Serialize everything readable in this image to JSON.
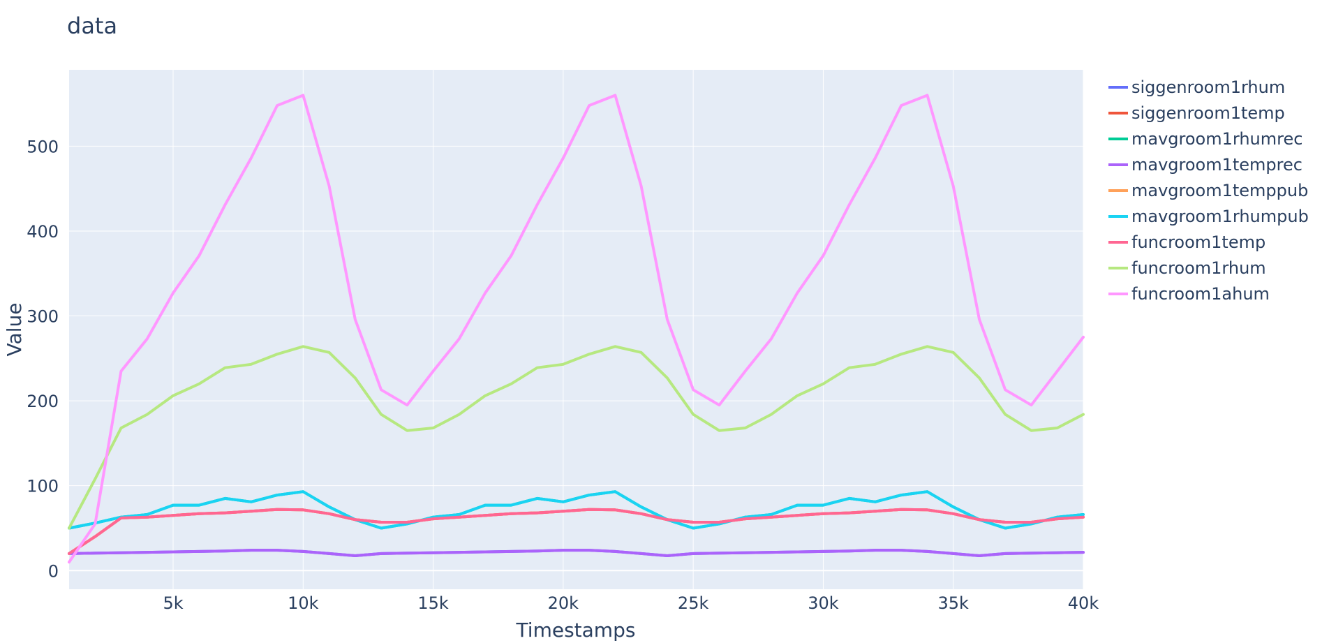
{
  "chart_data": {
    "type": "line",
    "title": "data",
    "xlabel": "Timestamps",
    "ylabel": "Value",
    "xlim": [
      1000,
      40000
    ],
    "ylim": [
      -22,
      590
    ],
    "x_ticks": [
      5000,
      10000,
      15000,
      20000,
      25000,
      30000,
      35000,
      40000
    ],
    "x_tick_labels": [
      "5k",
      "10k",
      "15k",
      "20k",
      "25k",
      "30k",
      "35k",
      "40k"
    ],
    "y_ticks": [
      0,
      100,
      200,
      300,
      400,
      500
    ],
    "y_tick_labels": [
      "0",
      "100",
      "200",
      "300",
      "400",
      "500"
    ],
    "grid": true,
    "legend_position": "right",
    "background_color": "#e5ecf6",
    "x": [
      1000,
      2000,
      3000,
      4000,
      5000,
      6000,
      7000,
      8000,
      9000,
      10000,
      11000,
      12000,
      13000,
      14000,
      15000,
      16000,
      17000,
      18000,
      19000,
      20000,
      21000,
      22000,
      23000,
      24000,
      25000,
      26000,
      27000,
      28000,
      29000,
      30000,
      31000,
      32000,
      33000,
      34000,
      35000,
      36000,
      37000,
      38000,
      39000,
      40000
    ],
    "series": [
      {
        "name": "siggenroom1rhum",
        "color": "#636efa",
        "values": [
          20,
          20.5,
          21,
          21.5,
          22,
          22.5,
          23,
          24,
          24,
          22.5,
          20,
          17.5,
          20,
          20.5,
          21,
          21.5,
          22,
          22.5,
          23,
          24,
          24,
          22.5,
          20,
          17.5,
          20,
          20.5,
          21,
          21.5,
          22,
          22.5,
          23,
          24,
          24,
          22.5,
          20,
          17.5,
          20,
          20.5,
          21,
          21.5
        ]
      },
      {
        "name": "siggenroom1temp",
        "color": "#ef553b",
        "values": [
          20,
          40,
          62,
          63,
          65,
          67,
          68,
          70,
          72,
          71.5,
          67,
          60,
          57,
          57,
          61,
          63,
          65,
          67,
          68,
          70,
          72,
          71.5,
          67,
          60,
          57,
          57,
          61,
          63,
          65,
          67,
          68,
          70,
          72,
          71.5,
          67,
          60,
          57,
          57,
          61,
          63
        ]
      },
      {
        "name": "mavgroom1rhumrec",
        "color": "#00cc96",
        "values": [
          50,
          56,
          63,
          66,
          77,
          77,
          85,
          81,
          89,
          93,
          75,
          60,
          50,
          55,
          63,
          66,
          77,
          77,
          85,
          81,
          89,
          93,
          75,
          60,
          50,
          55,
          63,
          66,
          77,
          77,
          85,
          81,
          89,
          93,
          75,
          60,
          50,
          55,
          63,
          66
        ]
      },
      {
        "name": "mavgroom1temprec",
        "color": "#ab63fa",
        "values": [
          20,
          20.5,
          21,
          21.5,
          22,
          22.5,
          23,
          24,
          24,
          22.5,
          20,
          17.5,
          20,
          20.5,
          21,
          21.5,
          22,
          22.5,
          23,
          24,
          24,
          22.5,
          20,
          17.5,
          20,
          20.5,
          21,
          21.5,
          22,
          22.5,
          23,
          24,
          24,
          22.5,
          20,
          17.5,
          20,
          20.5,
          21,
          21.5
        ]
      },
      {
        "name": "mavgroom1temppub",
        "color": "#ffa15a",
        "values": [
          20,
          40,
          62,
          63,
          65,
          67,
          68,
          70,
          72,
          71.5,
          67,
          60,
          57,
          57,
          61,
          63,
          65,
          67,
          68,
          70,
          72,
          71.5,
          67,
          60,
          57,
          57,
          61,
          63,
          65,
          67,
          68,
          70,
          72,
          71.5,
          67,
          60,
          57,
          57,
          61,
          63
        ]
      },
      {
        "name": "mavgroom1rhumpub",
        "color": "#19d3f3",
        "values": [
          50,
          56,
          63,
          66,
          77,
          77,
          85,
          81,
          89,
          93,
          75,
          60,
          50,
          55,
          63,
          66,
          77,
          77,
          85,
          81,
          89,
          93,
          75,
          60,
          50,
          55,
          63,
          66,
          77,
          77,
          85,
          81,
          89,
          93,
          75,
          60,
          50,
          55,
          63,
          66
        ]
      },
      {
        "name": "funcroom1temp",
        "color": "#ff6692",
        "values": [
          20,
          40,
          62,
          63,
          65,
          67,
          68,
          70,
          72,
          71.5,
          67,
          60,
          57,
          57,
          61,
          63,
          65,
          67,
          68,
          70,
          72,
          71.5,
          67,
          60,
          57,
          57,
          61,
          63,
          65,
          67,
          68,
          70,
          72,
          71.5,
          67,
          60,
          57,
          57,
          61,
          63
        ]
      },
      {
        "name": "funcroom1rhum",
        "color": "#b6e880",
        "values": [
          50,
          108,
          168,
          184,
          206,
          220,
          239,
          243,
          255,
          264,
          257,
          227,
          184,
          165,
          168,
          184,
          206,
          220,
          239,
          243,
          255,
          264,
          257,
          227,
          184,
          165,
          168,
          184,
          206,
          220,
          239,
          243,
          255,
          264,
          257,
          227,
          184,
          165,
          168,
          184
        ]
      },
      {
        "name": "funcroom1ahum",
        "color": "#ff97ff",
        "values": [
          10,
          55,
          235,
          273,
          327,
          371,
          431,
          486,
          548,
          560,
          453,
          296,
          213,
          195,
          235,
          273,
          327,
          371,
          431,
          486,
          548,
          560,
          453,
          296,
          213,
          195,
          235,
          273,
          327,
          371,
          431,
          486,
          548,
          560,
          453,
          296,
          213,
          195,
          235,
          275
        ]
      }
    ]
  }
}
